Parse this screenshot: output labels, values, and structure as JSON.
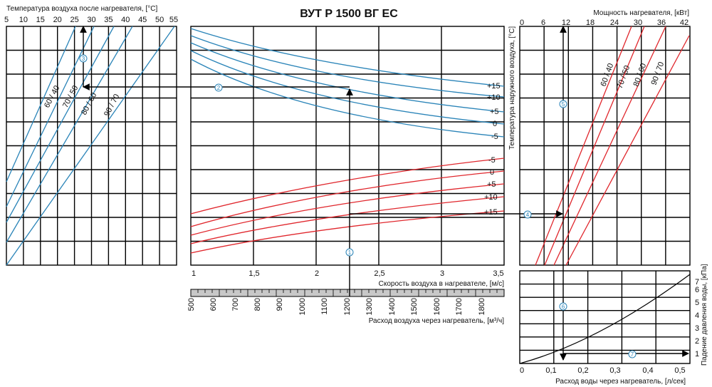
{
  "title": "ВУТ Р 1500 ВГ ЕС",
  "left_panel": {
    "axis_title": "Температура воздуха после нагревателя, [°C]",
    "ticks": [
      "5",
      "10",
      "15",
      "20",
      "25",
      "30",
      "35",
      "40",
      "45",
      "50",
      "55"
    ],
    "curve_labels": [
      "60 / 40",
      "70 / 50",
      "80 / 60",
      "90 / 70"
    ]
  },
  "middle_panel": {
    "speed_axis_title": "Скорость воздуха в нагревателе, [м/с]",
    "speed_ticks": [
      "1",
      "1,5",
      "2",
      "2,5",
      "3",
      "3,5"
    ],
    "flow_axis_title": "Расход воздуха через нагреватель, [м³/ч]",
    "flow_ticks": [
      "500",
      "600",
      "700",
      "800",
      "900",
      "1000",
      "1100",
      "1200",
      "1300",
      "1400",
      "1500",
      "1600",
      "1700",
      "1800"
    ],
    "blue_labels": [
      "+15",
      "+10",
      "+5",
      "0",
      "-5"
    ],
    "red_labels": [
      "-5",
      "0",
      "+5",
      "+10",
      "+15"
    ]
  },
  "right_top_panel": {
    "power_axis_title": "Мощность нагревателя, [кВт]",
    "power_ticks": [
      "0",
      "6",
      "12",
      "18",
      "24",
      "30",
      "36",
      "42"
    ],
    "outdoor_axis_title": "Температура наружного воздуха, [°C]",
    "curve_labels": [
      "60 / 40",
      "70 / 50",
      "80 / 60",
      "90 / 70"
    ]
  },
  "right_bottom_panel": {
    "water_flow_axis_title": "Расход воды через нагреватель, [л/сек]",
    "water_flow_ticks": [
      "0",
      "0,1",
      "0,2",
      "0,3",
      "0,4",
      "0,5"
    ],
    "pressure_axis_title": "Падение давления воды, [кПа]",
    "pressure_ticks": [
      "1",
      "2",
      "3",
      "4",
      "5",
      "6",
      "7"
    ]
  },
  "steps": [
    "1",
    "2",
    "3",
    "4",
    "5",
    "6",
    "7"
  ]
}
